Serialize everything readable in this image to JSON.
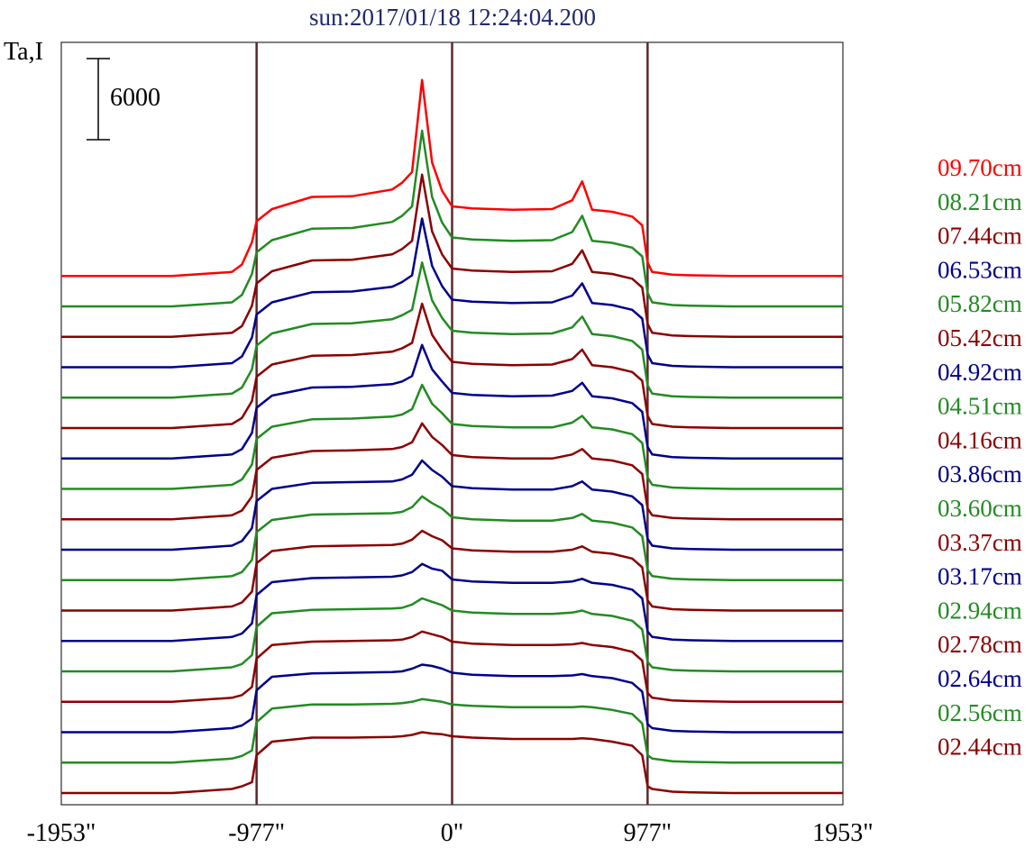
{
  "chart_data": {
    "type": "line",
    "title": "sun:2017/01/18 12:24:04.200",
    "ylabel": "Ta,I",
    "scale_bar": {
      "value": 6000,
      "label": "6000"
    },
    "xlim": [
      -1953,
      1953
    ],
    "xticks": [
      {
        "value": -1953,
        "label": "-1953\""
      },
      {
        "value": -977,
        "label": "-977\""
      },
      {
        "value": 0,
        "label": "0\""
      },
      {
        "value": 977,
        "label": "977\""
      },
      {
        "value": 1953,
        "label": "1953\""
      }
    ],
    "vlines": [
      -977,
      0,
      977
    ],
    "vline_color": "#5a2a2a",
    "grid": false,
    "legend_position": "right",
    "offset_step": 2250,
    "profile_x": [
      -1953,
      -1400,
      -1200,
      -1100,
      -1050,
      -1000,
      -977,
      -900,
      -700,
      -500,
      -300,
      -250,
      -200,
      -150,
      -100,
      -50,
      0,
      100,
      300,
      500,
      600,
      650,
      700,
      800,
      900,
      950,
      977,
      1000,
      1050,
      1100,
      1200,
      1400,
      1953
    ],
    "series": [
      {
        "name": "02.44cm",
        "color": "#8b0000",
        "values": [
          0,
          0,
          200,
          300,
          500,
          800,
          2800,
          3800,
          4100,
          4100,
          4150,
          4200,
          4300,
          4500,
          4400,
          4350,
          4200,
          4100,
          4000,
          4000,
          4000,
          4050,
          4000,
          3800,
          3500,
          2800,
          500,
          300,
          200,
          100,
          50,
          0,
          0
        ]
      },
      {
        "name": "02.56cm",
        "color": "#228b22",
        "values": [
          0,
          0,
          200,
          300,
          500,
          900,
          3000,
          4000,
          4300,
          4300,
          4350,
          4400,
          4500,
          4700,
          4600,
          4500,
          4300,
          4200,
          4100,
          4100,
          4100,
          4150,
          4100,
          3900,
          3600,
          2900,
          550,
          300,
          200,
          100,
          50,
          0,
          0
        ]
      },
      {
        "name": "02.64cm",
        "color": "#00008b",
        "values": [
          0,
          0,
          200,
          300,
          500,
          1000,
          3100,
          4100,
          4350,
          4400,
          4450,
          4500,
          4700,
          5000,
          4900,
          4700,
          4400,
          4250,
          4150,
          4150,
          4200,
          4300,
          4150,
          4000,
          3650,
          3000,
          600,
          300,
          200,
          100,
          50,
          0,
          0
        ]
      },
      {
        "name": "02.78cm",
        "color": "#8b0000",
        "values": [
          0,
          0,
          200,
          300,
          500,
          1100,
          3200,
          4200,
          4450,
          4500,
          4550,
          4600,
          4800,
          5200,
          5000,
          4800,
          4450,
          4300,
          4200,
          4200,
          4250,
          4350,
          4200,
          4050,
          3700,
          3050,
          650,
          300,
          200,
          100,
          50,
          0,
          0
        ]
      },
      {
        "name": "02.94cm",
        "color": "#228b22",
        "values": [
          0,
          0,
          200,
          300,
          550,
          1200,
          3300,
          4300,
          4550,
          4600,
          4650,
          4700,
          4950,
          5400,
          5150,
          4900,
          4500,
          4350,
          4250,
          4250,
          4350,
          4500,
          4250,
          4100,
          3750,
          3100,
          700,
          300,
          200,
          100,
          50,
          0,
          0
        ]
      },
      {
        "name": "03.17cm",
        "color": "#00008b",
        "values": [
          0,
          0,
          200,
          300,
          550,
          1300,
          3400,
          4350,
          4650,
          4700,
          4750,
          4850,
          5100,
          5700,
          5350,
          5200,
          4550,
          4400,
          4300,
          4300,
          4400,
          4600,
          4300,
          4150,
          3800,
          3150,
          700,
          300,
          200,
          100,
          50,
          0,
          0
        ]
      },
      {
        "name": "03.37cm",
        "color": "#8b0000",
        "values": [
          0,
          0,
          200,
          300,
          600,
          1400,
          3500,
          4400,
          4750,
          4800,
          4850,
          4950,
          5250,
          5900,
          5500,
          5200,
          4600,
          4450,
          4350,
          4350,
          4500,
          4750,
          4350,
          4200,
          3850,
          3200,
          750,
          300,
          200,
          100,
          50,
          0,
          0
        ]
      },
      {
        "name": "03.60cm",
        "color": "#228b22",
        "values": [
          0,
          0,
          200,
          300,
          600,
          1500,
          3550,
          4450,
          4850,
          4900,
          4950,
          5050,
          5400,
          6200,
          5700,
          5300,
          4650,
          4500,
          4400,
          4400,
          4600,
          4900,
          4400,
          4250,
          3900,
          3250,
          750,
          300,
          200,
          100,
          50,
          0,
          0
        ]
      },
      {
        "name": "03.86cm",
        "color": "#00008b",
        "values": [
          0,
          0,
          200,
          300,
          650,
          1600,
          3600,
          4500,
          4950,
          5000,
          5050,
          5200,
          5550,
          6600,
          5900,
          5400,
          4700,
          4550,
          4450,
          4450,
          4700,
          5050,
          4450,
          4300,
          3950,
          3300,
          800,
          300,
          200,
          100,
          50,
          0,
          0
        ]
      },
      {
        "name": "04.16cm",
        "color": "#8b0000",
        "values": [
          0,
          0,
          200,
          300,
          650,
          1700,
          3650,
          4550,
          5050,
          5100,
          5200,
          5350,
          5700,
          7100,
          6100,
          5500,
          4750,
          4600,
          4500,
          4500,
          4800,
          5200,
          4500,
          4350,
          4000,
          3350,
          800,
          300,
          200,
          100,
          50,
          0,
          0
        ]
      },
      {
        "name": "04.51cm",
        "color": "#228b22",
        "values": [
          0,
          0,
          200,
          300,
          700,
          1800,
          3700,
          4600,
          5150,
          5200,
          5350,
          5500,
          5900,
          7700,
          6300,
          5600,
          4800,
          4650,
          4550,
          4550,
          4900,
          5400,
          4550,
          4400,
          4050,
          3400,
          850,
          300,
          200,
          100,
          50,
          0,
          0
        ]
      },
      {
        "name": "04.92cm",
        "color": "#00008b",
        "values": [
          0,
          0,
          200,
          300,
          700,
          1900,
          3750,
          4650,
          5250,
          5300,
          5500,
          5700,
          6100,
          8400,
          6600,
          5700,
          4850,
          4700,
          4600,
          4650,
          5000,
          5600,
          4600,
          4450,
          4100,
          3450,
          850,
          300,
          200,
          100,
          50,
          0,
          0
        ]
      },
      {
        "name": "05.42cm",
        "color": "#8b0000",
        "values": [
          0,
          0,
          200,
          300,
          750,
          2000,
          3800,
          4700,
          5350,
          5400,
          5650,
          5900,
          6300,
          9200,
          6900,
          5800,
          4900,
          4750,
          4650,
          4700,
          5100,
          5800,
          4650,
          4500,
          4150,
          3500,
          900,
          300,
          200,
          100,
          50,
          0,
          0
        ]
      },
      {
        "name": "05.82cm",
        "color": "#228b22",
        "values": [
          0,
          0,
          200,
          300,
          750,
          2100,
          3850,
          4750,
          5450,
          5500,
          5800,
          6100,
          6500,
          10000,
          7200,
          5900,
          4950,
          4800,
          4700,
          4750,
          5200,
          6000,
          4700,
          4550,
          4200,
          3550,
          900,
          300,
          200,
          100,
          50,
          0,
          0
        ]
      },
      {
        "name": "06.53cm",
        "color": "#00008b",
        "values": [
          0,
          0,
          200,
          300,
          800,
          2200,
          3900,
          4800,
          5550,
          5600,
          5950,
          6300,
          6800,
          11000,
          7500,
          6000,
          5000,
          4850,
          4750,
          4800,
          5300,
          6200,
          4750,
          4600,
          4250,
          3600,
          950,
          300,
          200,
          100,
          50,
          0,
          0
        ]
      },
      {
        "name": "07.44cm",
        "color": "#8b0000",
        "values": [
          0,
          0,
          200,
          300,
          800,
          2300,
          3950,
          4850,
          5650,
          5700,
          6100,
          6500,
          7100,
          12000,
          7800,
          6100,
          5050,
          4900,
          4800,
          4850,
          5400,
          6400,
          4800,
          4650,
          4300,
          3650,
          950,
          300,
          200,
          100,
          50,
          0,
          0
        ]
      },
      {
        "name": "08.21cm",
        "color": "#228b22",
        "values": [
          0,
          0,
          200,
          300,
          850,
          2400,
          4000,
          4900,
          5750,
          5800,
          6250,
          6700,
          7400,
          13000,
          8100,
          6200,
          5100,
          4950,
          4850,
          4900,
          5500,
          6700,
          4850,
          4700,
          4350,
          3700,
          1000,
          300,
          200,
          100,
          50,
          0,
          0
        ]
      },
      {
        "name": "09.70cm",
        "color": "#ff0000",
        "values": [
          0,
          0,
          200,
          300,
          850,
          2500,
          4050,
          4950,
          5850,
          5900,
          6400,
          6900,
          7700,
          14500,
          8400,
          6300,
          5150,
          5000,
          4900,
          4950,
          5600,
          7000,
          4900,
          4750,
          4400,
          3750,
          1000,
          300,
          200,
          100,
          50,
          0,
          0
        ]
      }
    ]
  }
}
